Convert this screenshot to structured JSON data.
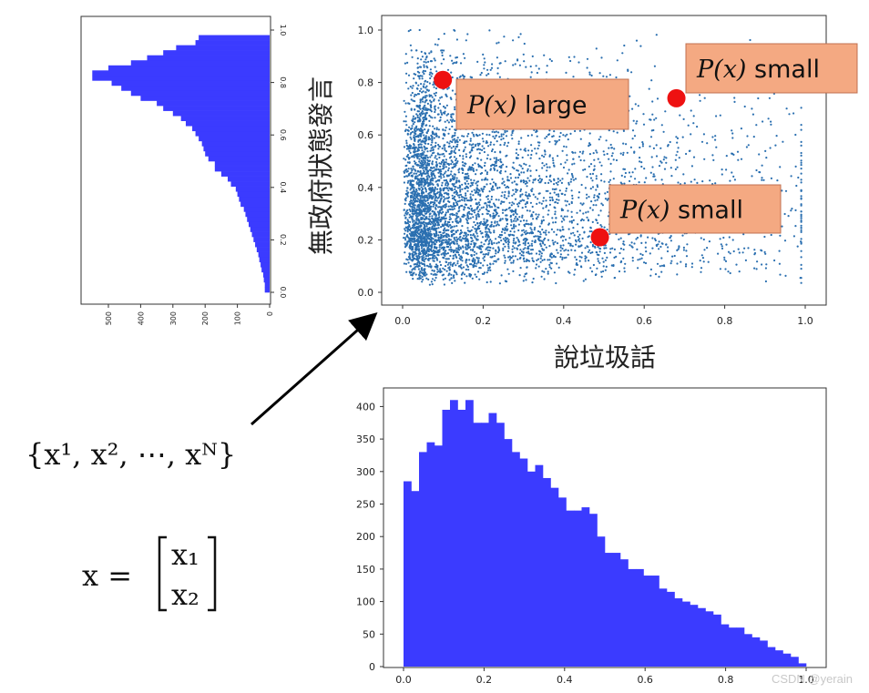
{
  "colors": {
    "hist": "#3b3bff",
    "scatter": "#2a6fb0",
    "callout_fill": "#f4a982",
    "callout_border": "#c07050",
    "dot": "#ee1111"
  },
  "scatter": {
    "xlabel": "說垃圾話",
    "ylabel": "無政府狀態發言",
    "xticks": [
      "0.0",
      "0.2",
      "0.4",
      "0.6",
      "0.8",
      "1.0"
    ],
    "yticks": [
      "0.0",
      "0.2",
      "0.4",
      "0.6",
      "0.8",
      "1.0"
    ],
    "callouts": [
      {
        "name": "px-large",
        "prefix": "P(x)",
        "suffix": "large",
        "dot": [
          0.1,
          0.81
        ]
      },
      {
        "name": "px-small-top",
        "prefix": "P(x)",
        "suffix": "small",
        "dot": [
          0.68,
          0.74
        ]
      },
      {
        "name": "px-small-bottom",
        "prefix": "P(x)",
        "suffix": "small",
        "dot": [
          0.49,
          0.21
        ]
      }
    ]
  },
  "formula_set": "{x¹, x², ⋯, xᴺ}",
  "formula_vector": {
    "lhs": "x =",
    "top": "x₁",
    "bottom": "x₂"
  },
  "watermark": "CSDN @yerain",
  "chart_data": [
    {
      "type": "bar",
      "title": "",
      "orientation": "vertical",
      "x_range": [
        0,
        1
      ],
      "ylim": [
        0,
        430
      ],
      "xticks": [
        "0.0",
        "0.2",
        "0.4",
        "0.6",
        "0.8",
        "1.0"
      ],
      "yticks": [
        "0",
        "50",
        "100",
        "150",
        "200",
        "250",
        "300",
        "350",
        "400"
      ],
      "bin_width": 0.02,
      "values": [
        285,
        270,
        330,
        345,
        340,
        395,
        410,
        395,
        410,
        375,
        375,
        390,
        375,
        350,
        330,
        320,
        300,
        310,
        290,
        275,
        260,
        240,
        240,
        245,
        235,
        200,
        175,
        175,
        165,
        150,
        150,
        140,
        140,
        120,
        115,
        105,
        100,
        95,
        90,
        85,
        80,
        65,
        60,
        60,
        50,
        45,
        40,
        30,
        25,
        20,
        15,
        5
      ]
    },
    {
      "type": "bar",
      "title": "",
      "orientation": "horizontal",
      "y_range": [
        0,
        1
      ],
      "xlim": [
        0,
        600
      ],
      "xticks": [
        "0",
        "100",
        "200",
        "300",
        "400",
        "500"
      ],
      "yticks": [
        "0.0",
        "0.2",
        "0.4",
        "0.6",
        "0.8",
        "1.0"
      ],
      "bin_width": 0.02,
      "values": [
        15,
        15,
        18,
        20,
        25,
        28,
        32,
        35,
        40,
        45,
        50,
        55,
        60,
        65,
        70,
        75,
        80,
        90,
        95,
        100,
        105,
        120,
        130,
        150,
        170,
        170,
        190,
        200,
        205,
        210,
        220,
        230,
        240,
        260,
        275,
        300,
        330,
        350,
        400,
        430,
        460,
        490,
        550,
        550,
        500,
        430,
        380,
        330,
        290,
        230,
        220,
        0
      ]
    },
    {
      "type": "scatter",
      "title": "",
      "xlabel": "說垃圾話",
      "ylabel": "無政府狀態發言",
      "xlim": [
        0,
        1
      ],
      "ylim": [
        0,
        1
      ],
      "n_points": 10000,
      "highlighted_points": [
        {
          "x": 0.1,
          "y": 0.81,
          "label": "P(x) large"
        },
        {
          "x": 0.68,
          "y": 0.74,
          "label": "P(x) small"
        },
        {
          "x": 0.49,
          "y": 0.21,
          "label": "P(x) small"
        }
      ]
    }
  ]
}
